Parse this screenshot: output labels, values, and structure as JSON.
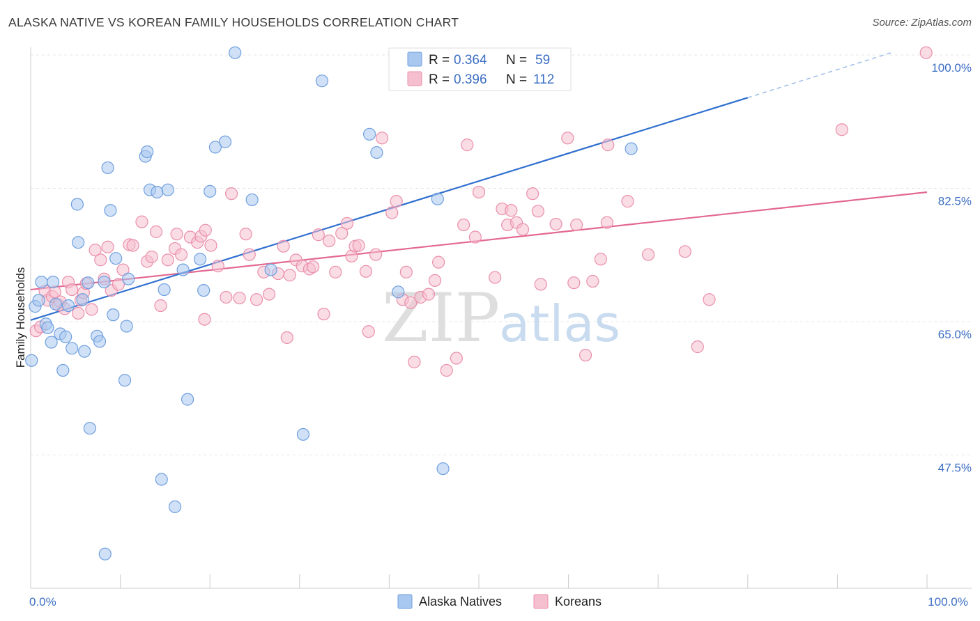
{
  "title": "ALASKA NATIVE VS KOREAN FAMILY HOUSEHOLDS CORRELATION CHART",
  "source": "Source: ZipAtlas.com",
  "watermark": {
    "zip": "ZIP",
    "atlas": "atlas"
  },
  "colors": {
    "blue_fill": "#a9c8f0",
    "blue_stroke": "#6f9fde",
    "blue_line": "#2f6fcf",
    "pink_fill": "#f6bfd0",
    "pink_stroke": "#ea8fab",
    "pink_line": "#e36892",
    "grid": "#e4e4e4",
    "tick_text": "#3d6fc4"
  },
  "legend": {
    "rows": [
      {
        "r_label": "R =",
        "r_value": "0.364",
        "n_label": "N =",
        "n_value": "59"
      },
      {
        "r_label": "R =",
        "r_value": "0.396",
        "n_label": "N =",
        "n_value": "112"
      }
    ]
  },
  "bottom_legend": [
    "Alaska Natives",
    "Koreans"
  ],
  "chart_data": {
    "type": "scatter",
    "title": "ALASKA NATIVE VS KOREAN FAMILY HOUSEHOLDS CORRELATION CHART",
    "xlabel": "",
    "ylabel": "Family Households",
    "xlim": [
      0,
      105
    ],
    "ylim": [
      31,
      102
    ],
    "x_tick_labels": [
      {
        "value": 0,
        "label": "0.0%"
      },
      {
        "value": 100,
        "label": "100.0%"
      }
    ],
    "y_tick_labels": [
      {
        "value": 100,
        "label": "100.0%"
      },
      {
        "value": 82.5,
        "label": "82.5%"
      },
      {
        "value": 65,
        "label": "65.0%"
      },
      {
        "value": 47.5,
        "label": "47.5%"
      }
    ],
    "grid": true,
    "legend_position": "top-center",
    "series": [
      {
        "name": "Alaska Natives",
        "R": 0.364,
        "N": 59,
        "trend": {
          "x0": 0,
          "y0": 65.2,
          "x1": 80,
          "y1": 94.4,
          "dash_x1": 96,
          "dash_y1": 100.3
        },
        "points": [
          [
            0.1,
            59.9
          ],
          [
            0.5,
            67.0
          ],
          [
            0.9,
            67.8
          ],
          [
            1.2,
            70.2
          ],
          [
            1.7,
            64.7
          ],
          [
            1.9,
            64.2
          ],
          [
            2.3,
            62.3
          ],
          [
            2.5,
            70.2
          ],
          [
            2.8,
            67.3
          ],
          [
            3.3,
            63.4
          ],
          [
            3.6,
            58.6
          ],
          [
            3.9,
            63.0
          ],
          [
            4.2,
            67.1
          ],
          [
            4.6,
            61.5
          ],
          [
            5.2,
            80.4
          ],
          [
            5.3,
            75.4
          ],
          [
            5.8,
            67.9
          ],
          [
            6.0,
            61.1
          ],
          [
            6.4,
            70.1
          ],
          [
            6.6,
            51.0
          ],
          [
            7.4,
            63.1
          ],
          [
            7.7,
            62.4
          ],
          [
            8.2,
            70.2
          ],
          [
            8.3,
            34.5
          ],
          [
            8.6,
            85.2
          ],
          [
            8.9,
            79.6
          ],
          [
            9.2,
            65.9
          ],
          [
            9.5,
            73.3
          ],
          [
            10.5,
            57.3
          ],
          [
            10.7,
            64.4
          ],
          [
            10.9,
            70.6
          ],
          [
            12.8,
            86.7
          ],
          [
            13.0,
            87.3
          ],
          [
            13.3,
            82.3
          ],
          [
            14.1,
            82.0
          ],
          [
            14.6,
            44.3
          ],
          [
            14.9,
            69.2
          ],
          [
            15.3,
            82.3
          ],
          [
            16.1,
            40.7
          ],
          [
            17.0,
            71.8
          ],
          [
            17.5,
            54.8
          ],
          [
            18.9,
            73.2
          ],
          [
            19.3,
            69.1
          ],
          [
            20.0,
            82.1
          ],
          [
            20.6,
            87.9
          ],
          [
            21.7,
            88.6
          ],
          [
            22.8,
            100.3
          ],
          [
            24.7,
            81.0
          ],
          [
            26.8,
            71.8
          ],
          [
            30.4,
            50.2
          ],
          [
            32.5,
            96.6
          ],
          [
            37.8,
            89.6
          ],
          [
            38.6,
            87.2
          ],
          [
            41.0,
            68.9
          ],
          [
            45.4,
            81.1
          ],
          [
            46.0,
            45.7
          ],
          [
            67.0,
            87.7
          ]
        ]
      },
      {
        "name": "Koreans",
        "R": 0.396,
        "N": 112,
        "trend": {
          "x0": 0,
          "y0": 69.2,
          "x1": 100,
          "y1": 82.0
        },
        "points": [
          [
            0.6,
            63.8
          ],
          [
            1.1,
            64.3
          ],
          [
            1.6,
            69.0
          ],
          [
            1.9,
            67.8
          ],
          [
            2.4,
            68.3
          ],
          [
            2.7,
            68.9
          ],
          [
            3.1,
            67.2
          ],
          [
            3.3,
            67.6
          ],
          [
            3.8,
            66.7
          ],
          [
            4.2,
            70.2
          ],
          [
            4.6,
            69.2
          ],
          [
            5.3,
            66.1
          ],
          [
            5.6,
            67.8
          ],
          [
            5.9,
            68.8
          ],
          [
            6.2,
            70.0
          ],
          [
            6.8,
            66.6
          ],
          [
            7.2,
            74.4
          ],
          [
            7.8,
            73.1
          ],
          [
            8.2,
            70.6
          ],
          [
            8.6,
            74.8
          ],
          [
            9.0,
            69.1
          ],
          [
            9.8,
            69.9
          ],
          [
            10.3,
            71.8
          ],
          [
            11.0,
            75.1
          ],
          [
            11.4,
            75.0
          ],
          [
            12.4,
            78.1
          ],
          [
            13.0,
            72.9
          ],
          [
            13.5,
            73.5
          ],
          [
            14.0,
            76.8
          ],
          [
            14.5,
            67.1
          ],
          [
            15.3,
            73.1
          ],
          [
            16.1,
            74.6
          ],
          [
            16.3,
            76.5
          ],
          [
            16.8,
            73.8
          ],
          [
            17.8,
            76.1
          ],
          [
            18.6,
            75.4
          ],
          [
            19.0,
            76.2
          ],
          [
            19.5,
            77.0
          ],
          [
            19.4,
            65.3
          ],
          [
            20.1,
            75.0
          ],
          [
            20.9,
            72.3
          ],
          [
            21.8,
            68.2
          ],
          [
            22.4,
            81.8
          ],
          [
            23.3,
            68.1
          ],
          [
            24.0,
            76.5
          ],
          [
            24.4,
            73.8
          ],
          [
            25.2,
            67.9
          ],
          [
            26.0,
            71.5
          ],
          [
            26.6,
            68.6
          ],
          [
            27.6,
            71.3
          ],
          [
            28.2,
            74.9
          ],
          [
            28.6,
            62.9
          ],
          [
            28.9,
            71.1
          ],
          [
            29.6,
            73.1
          ],
          [
            30.3,
            72.3
          ],
          [
            31.1,
            71.9
          ],
          [
            31.5,
            72.2
          ],
          [
            32.1,
            76.4
          ],
          [
            32.7,
            66.0
          ],
          [
            33.3,
            75.6
          ],
          [
            34.0,
            71.5
          ],
          [
            34.7,
            76.6
          ],
          [
            35.3,
            77.9
          ],
          [
            35.8,
            73.6
          ],
          [
            36.2,
            74.9
          ],
          [
            36.6,
            75.0
          ],
          [
            37.4,
            71.6
          ],
          [
            37.7,
            63.7
          ],
          [
            38.5,
            73.8
          ],
          [
            39.2,
            89.1
          ],
          [
            40.3,
            79.3
          ],
          [
            40.8,
            80.8
          ],
          [
            41.5,
            67.9
          ],
          [
            41.9,
            71.5
          ],
          [
            42.4,
            67.5
          ],
          [
            42.8,
            59.7
          ],
          [
            43.5,
            68.2
          ],
          [
            44.4,
            68.6
          ],
          [
            45.1,
            70.4
          ],
          [
            45.5,
            72.8
          ],
          [
            46.4,
            58.6
          ],
          [
            47.5,
            60.2
          ],
          [
            48.3,
            77.7
          ],
          [
            48.7,
            88.2
          ],
          [
            49.6,
            76.1
          ],
          [
            50.0,
            82.0
          ],
          [
            51.8,
            70.8
          ],
          [
            52.6,
            79.8
          ],
          [
            53.2,
            77.7
          ],
          [
            53.6,
            79.6
          ],
          [
            54.2,
            78.0
          ],
          [
            54.9,
            77.1
          ],
          [
            56.0,
            81.8
          ],
          [
            56.6,
            79.5
          ],
          [
            56.9,
            69.9
          ],
          [
            58.6,
            77.8
          ],
          [
            59.9,
            89.1
          ],
          [
            60.6,
            70.1
          ],
          [
            60.9,
            77.7
          ],
          [
            61.9,
            60.6
          ],
          [
            62.7,
            70.3
          ],
          [
            63.6,
            73.2
          ],
          [
            64.3,
            78.0
          ],
          [
            64.4,
            88.2
          ],
          [
            66.6,
            80.8
          ],
          [
            68.9,
            73.8
          ],
          [
            73.0,
            74.2
          ],
          [
            74.4,
            61.7
          ],
          [
            75.7,
            67.9
          ],
          [
            90.5,
            90.2
          ],
          [
            99.9,
            100.3
          ]
        ]
      }
    ]
  }
}
